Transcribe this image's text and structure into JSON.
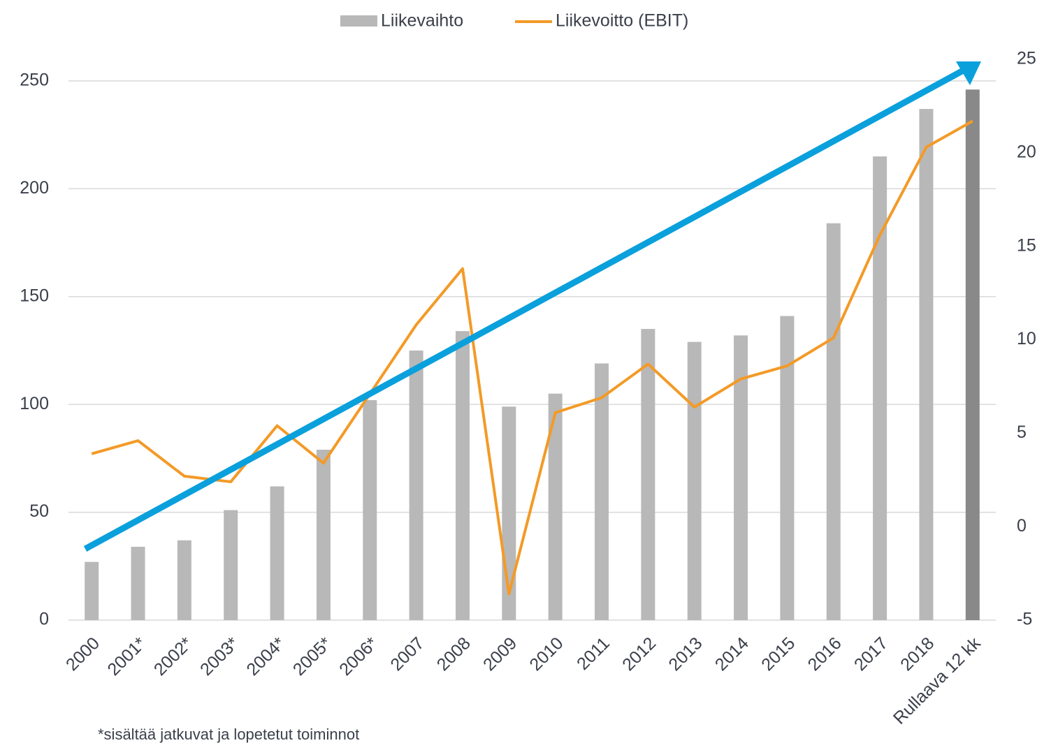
{
  "chart_data": {
    "type": "bar",
    "categories": [
      "2000",
      "2001*",
      "2002*",
      "2003*",
      "2004*",
      "2005*",
      "2006*",
      "2007",
      "2008",
      "2009",
      "2010",
      "2011",
      "2012",
      "2013",
      "2014",
      "2015",
      "2016",
      "2017",
      "2018",
      "Rullaava 12 kk"
    ],
    "series": [
      {
        "name": "Liikevaihto",
        "color": "#b8b8b8",
        "colors": [
          "#b8b8b8",
          "#b8b8b8",
          "#b8b8b8",
          "#b8b8b8",
          "#b8b8b8",
          "#b8b8b8",
          "#b8b8b8",
          "#b8b8b8",
          "#b8b8b8",
          "#b8b8b8",
          "#b8b8b8",
          "#b8b8b8",
          "#b8b8b8",
          "#b8b8b8",
          "#b8b8b8",
          "#b8b8b8",
          "#b8b8b8",
          "#b8b8b8",
          "#b8b8b8",
          "#898989"
        ],
        "values": [
          27,
          34,
          37,
          51,
          62,
          79,
          102,
          125,
          134,
          99,
          105,
          119,
          135,
          129,
          132,
          141,
          184,
          215,
          237,
          246
        ]
      },
      {
        "name": "Liikevoitto (EBIT)",
        "type": "line",
        "axis": "y2",
        "color": "#f39a27",
        "values": [
          3.9,
          4.6,
          2.7,
          2.4,
          5.4,
          3.4,
          7.1,
          10.8,
          13.8,
          -3.6,
          6.1,
          6.9,
          8.7,
          6.4,
          7.9,
          8.6,
          10.1,
          15.6,
          20.3,
          21.7
        ]
      }
    ],
    "ylim": [
      0,
      260
    ],
    "yticks": [
      0,
      50,
      100,
      150,
      200,
      250
    ],
    "y2lim": [
      -5,
      25
    ],
    "y2ticks": [
      -5,
      0,
      5,
      10,
      15,
      20,
      25
    ],
    "grid": true,
    "legend": "top",
    "footnote": "*sisältää jatkuvat ja lopetetut toiminnot"
  }
}
